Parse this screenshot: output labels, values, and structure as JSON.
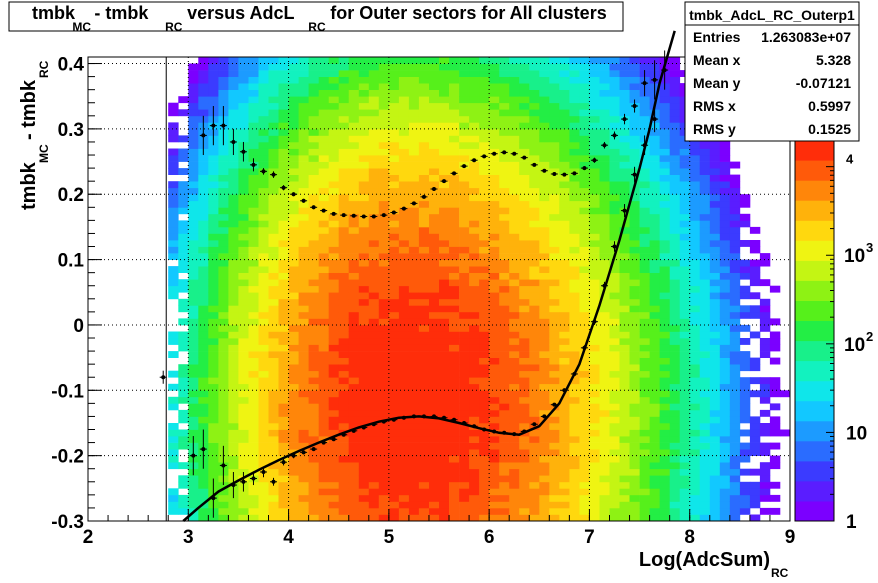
{
  "title": {
    "parts": [
      "tmbk",
      "MC",
      " - tmbk",
      "RC",
      " versus AdcL",
      "RC",
      " for Outer sectors for All clusters"
    ]
  },
  "stats_box": {
    "name": "tmbk_AdcL_RC_Outerp1",
    "rows": [
      {
        "label": "Entries",
        "value": "1.263083e+07"
      },
      {
        "label": "Mean x",
        "value": "5.328"
      },
      {
        "label": "Mean y",
        "value": "-0.07121"
      },
      {
        "label": "RMS x",
        "value": "0.5997"
      },
      {
        "label": "RMS y",
        "value": "0.1525"
      }
    ]
  },
  "palette_colors": [
    "#7b00ff",
    "#5a1dff",
    "#3b3bff",
    "#2a6cff",
    "#1c9bff",
    "#12c8ff",
    "#0fe6ea",
    "#12f2bf",
    "#18f08a",
    "#23ee45",
    "#56f01b",
    "#8ef214",
    "#c4f513",
    "#eff412",
    "#ffd80e",
    "#ffb20b",
    "#ff860a",
    "#ff5a0a",
    "#ff2d0a"
  ],
  "chart_data": {
    "type": "heatmap",
    "title": "tmbk_MC - tmbk_RC versus AdcL_RC for Outer sectors for All clusters",
    "xlabel": "Log(AdcSum)_RC",
    "ylabel": "tmbk_MC - tmbk_RC",
    "xlim": [
      2,
      9
    ],
    "ylim": [
      -0.3,
      0.41
    ],
    "x_ticks": [
      "2",
      "3",
      "4",
      "5",
      "6",
      "7",
      "8",
      "9"
    ],
    "y_ticks": [
      "-0.3",
      "-0.2",
      "-0.1",
      "0",
      "0.1",
      "0.2",
      "0.3",
      "0.4"
    ],
    "grid": true,
    "z_scale": "log",
    "z_range": [
      1,
      20000
    ],
    "z_ticks": [
      {
        "base": "10",
        "exp": "",
        "label": "1",
        "value": 1
      },
      {
        "base": "10",
        "exp": "",
        "label": "10",
        "value": 10
      },
      {
        "base": "10",
        "exp": "2",
        "label": "",
        "value": 100
      },
      {
        "base": "10",
        "exp": "3",
        "label": "",
        "value": 1000
      },
      {
        "base": "",
        "exp": "4",
        "label": "",
        "value": 10000
      }
    ],
    "density_model": {
      "x_range": [
        2.8,
        8.95
      ],
      "bin_width_x": 0.1,
      "bin_height_y": 0.01,
      "peak_x": 5.15,
      "peak_y": -0.12,
      "sigma_x_left": 0.65,
      "sigma_x_right": 0.85,
      "sigma_y": 0.17,
      "peak_counts": 20000
    },
    "series": [
      {
        "name": "",
        "style": "profile_rms_upper",
        "x": [
          2.75,
          3.15,
          3.25,
          3.35,
          3.45,
          3.55,
          3.65,
          3.75,
          3.85,
          3.95,
          4.05,
          4.15,
          4.25,
          4.35,
          4.45,
          4.55,
          4.65,
          4.75,
          4.85,
          4.95,
          5.05,
          5.15,
          5.25,
          5.35,
          5.45,
          5.55,
          5.65,
          5.75,
          5.85,
          5.95,
          6.05,
          6.15,
          6.25,
          6.35,
          6.45,
          6.55,
          6.65,
          6.75,
          6.85,
          6.95,
          7.05,
          7.15,
          7.25,
          7.35,
          7.45,
          7.55,
          7.65,
          7.75
        ],
        "y": [
          -0.08,
          0.29,
          0.305,
          0.305,
          0.28,
          0.265,
          0.245,
          0.235,
          0.23,
          0.21,
          0.2,
          0.19,
          0.18,
          0.175,
          0.17,
          0.168,
          0.167,
          0.166,
          0.166,
          0.168,
          0.172,
          0.178,
          0.186,
          0.196,
          0.208,
          0.22,
          0.232,
          0.243,
          0.252,
          0.258,
          0.262,
          0.264,
          0.262,
          0.256,
          0.245,
          0.236,
          0.231,
          0.23,
          0.232,
          0.24,
          0.252,
          0.275,
          0.29,
          0.315,
          0.335,
          0.37,
          0.375,
          0.39
        ],
        "err": [
          0.01,
          0.03,
          0.03,
          0.03,
          0.02,
          0.015,
          0.01,
          0.005,
          0.005,
          0.004,
          0.003,
          0.003,
          0.003,
          0.002,
          0.002,
          0.002,
          0.002,
          0.002,
          0.002,
          0.002,
          0.002,
          0.002,
          0.002,
          0.002,
          0.002,
          0.002,
          0.002,
          0.002,
          0.002,
          0.002,
          0.002,
          0.002,
          0.002,
          0.002,
          0.002,
          0.002,
          0.002,
          0.002,
          0.002,
          0.003,
          0.004,
          0.005,
          0.006,
          0.008,
          0.01,
          0.02,
          0.03,
          0.03
        ]
      },
      {
        "name": "",
        "style": "profile_mean",
        "x": [
          3.05,
          3.15,
          3.25,
          3.35,
          3.45,
          3.55,
          3.65,
          3.75,
          3.85,
          3.95,
          4.05,
          4.15,
          4.25,
          4.35,
          4.45,
          4.55,
          4.65,
          4.75,
          4.85,
          4.95,
          5.05,
          5.15,
          5.25,
          5.35,
          5.45,
          5.55,
          5.65,
          5.75,
          5.85,
          5.95,
          6.05,
          6.15,
          6.25,
          6.35,
          6.45,
          6.55,
          6.65,
          6.75,
          6.85,
          6.95,
          7.05,
          7.15,
          7.25,
          7.35,
          7.45,
          7.55,
          7.65
        ],
        "y": [
          -0.2,
          -0.19,
          -0.265,
          -0.215,
          -0.245,
          -0.24,
          -0.235,
          -0.225,
          -0.24,
          -0.21,
          -0.2,
          -0.195,
          -0.19,
          -0.18,
          -0.175,
          -0.168,
          -0.162,
          -0.157,
          -0.152,
          -0.148,
          -0.145,
          -0.142,
          -0.14,
          -0.14,
          -0.14,
          -0.142,
          -0.145,
          -0.15,
          -0.155,
          -0.16,
          -0.163,
          -0.165,
          -0.167,
          -0.163,
          -0.152,
          -0.14,
          -0.122,
          -0.1,
          -0.075,
          -0.035,
          0.005,
          0.06,
          0.12,
          0.175,
          0.23,
          0.275,
          0.315
        ],
        "err": [
          0.03,
          0.03,
          0.03,
          0.03,
          0.02,
          0.015,
          0.01,
          0.008,
          0.006,
          0.005,
          0.004,
          0.003,
          0.003,
          0.002,
          0.002,
          0.002,
          0.002,
          0.002,
          0.002,
          0.002,
          0.002,
          0.002,
          0.002,
          0.002,
          0.002,
          0.002,
          0.002,
          0.002,
          0.002,
          0.002,
          0.002,
          0.002,
          0.002,
          0.002,
          0.002,
          0.002,
          0.002,
          0.003,
          0.003,
          0.004,
          0.005,
          0.006,
          0.008,
          0.01,
          0.012,
          0.015,
          0.02
        ]
      },
      {
        "name": "",
        "style": "fit_curve",
        "x": [
          2.95,
          3.1,
          3.3,
          3.5,
          3.7,
          3.9,
          4.1,
          4.3,
          4.5,
          4.7,
          4.9,
          5.1,
          5.3,
          5.5,
          5.7,
          5.9,
          6.1,
          6.3,
          6.5,
          6.7,
          6.9,
          7.1,
          7.3,
          7.5,
          7.6,
          7.7,
          7.85
        ],
        "y": [
          -0.3,
          -0.28,
          -0.255,
          -0.238,
          -0.222,
          -0.207,
          -0.193,
          -0.18,
          -0.168,
          -0.157,
          -0.148,
          -0.142,
          -0.14,
          -0.143,
          -0.15,
          -0.158,
          -0.165,
          -0.168,
          -0.155,
          -0.12,
          -0.06,
          0.03,
          0.13,
          0.24,
          0.3,
          0.37,
          0.45
        ]
      }
    ]
  }
}
